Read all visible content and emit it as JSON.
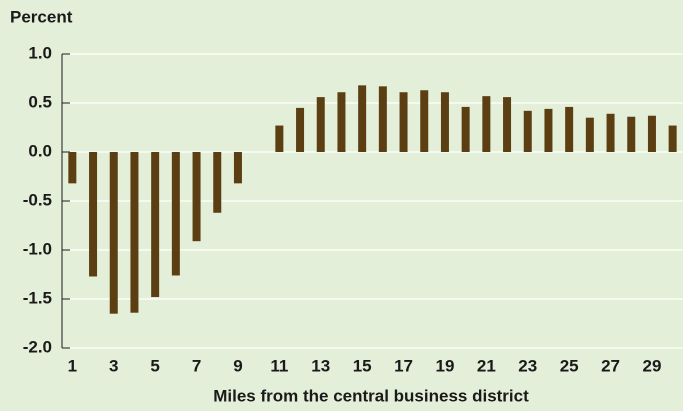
{
  "chart_data": {
    "type": "bar",
    "y_axis_label": "Percent",
    "x_axis_label": "Miles from the central business district",
    "categories": [
      "1",
      null,
      "3",
      null,
      "5",
      null,
      "7",
      null,
      "9",
      null,
      "11",
      null,
      "13",
      null,
      "15",
      null,
      "17",
      null,
      "19",
      null,
      "21",
      null,
      "23",
      null,
      "25",
      null,
      "27",
      null,
      "29",
      null
    ],
    "values": [
      -0.32,
      -1.27,
      -1.65,
      -1.64,
      -1.48,
      -1.26,
      -0.91,
      -0.62,
      -0.32,
      0,
      0.27,
      0.45,
      0.56,
      0.61,
      0.68,
      0.67,
      0.61,
      0.63,
      0.61,
      0.46,
      0.57,
      0.56,
      0.42,
      0.44,
      0.46,
      0.35,
      0.39,
      0.36,
      0.37,
      0.27
    ],
    "color": "#5b3f12",
    "ylim": [
      -2.0,
      1.0
    ],
    "yticks": [
      {
        "value": 1.0,
        "label": "1.0"
      },
      0.5,
      {
        "value": 0.0,
        "label": "0.0"
      },
      -0.5,
      {
        "value": -1.0,
        "label": "-1.0"
      },
      -1.5,
      {
        "value": -2.0,
        "label": "-2.0"
      }
    ],
    "grid": true
  }
}
